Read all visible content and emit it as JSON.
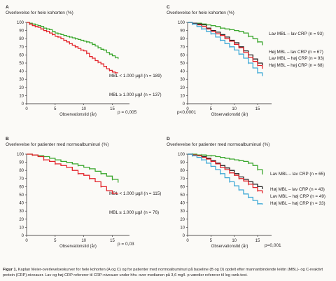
{
  "caption": {
    "label": "Figur 1.",
    "text": "Kaplan Meier-overlevelseskurver for hele kohorten (A og C) og for patienter med normoalbuminuri på baseline (B og D) opdelt efter mannanbindende lektin (MBL)- og C-reaktivt protein (CRP)-niveauer. Lav og høj CRP refererer til CRP-niveauer under hhv. over medianen på 3,6 mg/l. p-værdier refererer til log rank-test."
  },
  "colors": {
    "green": "#3aa62c",
    "red": "#e3242b",
    "black": "#231f20",
    "blue": "#3fa9d6"
  },
  "chart_data": [
    {
      "panel": "A",
      "type": "line",
      "title": "Overlevelse for hele kohorten (%)",
      "xlabel": "Observationstid (år)",
      "ylabel": "",
      "xlim": [
        0,
        18
      ],
      "ylim": [
        0,
        100
      ],
      "xticks": [
        0,
        5,
        10,
        15
      ],
      "yticks": [
        0,
        10,
        20,
        30,
        40,
        50,
        60,
        70,
        80,
        90,
        100
      ],
      "pvalue": "p = 0,005",
      "series": [
        {
          "name": "MBL < 1.000 µg/l (n = 189)",
          "color": "green",
          "x": [
            0,
            0.5,
            1,
            1.5,
            2,
            2.5,
            3,
            3.5,
            4,
            4.5,
            5,
            5.5,
            6,
            6.5,
            7,
            7.5,
            8,
            8.5,
            9,
            9.5,
            10,
            10.5,
            11,
            11.5,
            12,
            12.5,
            13,
            13.5,
            14,
            14.5,
            15,
            15.5,
            16
          ],
          "y": [
            100,
            99,
            98,
            97,
            96,
            95,
            93,
            92,
            91,
            89,
            87,
            86,
            85,
            84,
            83,
            82,
            81,
            80,
            79,
            78,
            77,
            76,
            75,
            73,
            71,
            69,
            67,
            66,
            63,
            61,
            59,
            57,
            55
          ]
        },
        {
          "name": "MBL ≥ 1.000 µg/l (n = 137)",
          "color": "red",
          "x": [
            0,
            0.5,
            1,
            1.5,
            2,
            2.5,
            3,
            3.5,
            4,
            4.5,
            5,
            5.5,
            6,
            6.5,
            7,
            7.5,
            8,
            8.5,
            9,
            9.5,
            10,
            10.5,
            11,
            11.5,
            12,
            12.5,
            13,
            13.5,
            14,
            14.5,
            15,
            15.5,
            16
          ],
          "y": [
            100,
            98,
            96,
            95,
            94,
            92,
            90,
            89,
            87,
            85,
            83,
            82,
            80,
            78,
            76,
            74,
            72,
            70,
            68,
            66,
            65,
            62,
            58,
            56,
            53,
            51,
            49,
            46,
            43,
            41,
            39,
            38,
            38
          ]
        }
      ]
    },
    {
      "panel": "B",
      "type": "line",
      "title": "Overlevelse for patienter med normoalbuminuri (%)",
      "xlabel": "Observationstid (år)",
      "ylabel": "",
      "xlim": [
        0,
        18
      ],
      "ylim": [
        0,
        100
      ],
      "xticks": [
        0,
        5,
        10,
        15
      ],
      "yticks": [
        0,
        10,
        20,
        30,
        40,
        50,
        60,
        70,
        80,
        90,
        100
      ],
      "pvalue": "p = 0,03",
      "series": [
        {
          "name": "MBL < 1.000 µg/l (n = 115)",
          "color": "green",
          "x": [
            0,
            1,
            2,
            3,
            4,
            5,
            6,
            7,
            8,
            9,
            10,
            11,
            12,
            13,
            14,
            15,
            16
          ],
          "y": [
            100,
            99,
            98,
            97,
            95,
            93,
            91,
            90,
            88,
            86,
            84,
            82,
            79,
            76,
            73,
            69,
            65
          ]
        },
        {
          "name": "MBL ≥ 1.000 µg/l (n = 76)",
          "color": "red",
          "x": [
            0,
            1,
            2,
            3,
            4,
            5,
            6,
            7,
            8,
            9,
            10,
            11,
            12,
            13,
            14,
            15,
            16
          ],
          "y": [
            100,
            99,
            97,
            93,
            91,
            88,
            86,
            84,
            80,
            76,
            74,
            70,
            66,
            60,
            55,
            52,
            52
          ]
        }
      ]
    },
    {
      "panel": "C",
      "type": "line",
      "title": "Overlevelse for hele kohorten (%)",
      "xlabel": "Observationstid (år)",
      "ylabel": "",
      "xlim": [
        0,
        18
      ],
      "ylim": [
        0,
        100
      ],
      "xticks": [
        0,
        5,
        10,
        15
      ],
      "yticks": [
        0,
        10,
        20,
        30,
        40,
        50,
        60,
        70,
        80,
        90,
        100
      ],
      "pvalue": "p<0,0001",
      "series": [
        {
          "name": "Lav MBL – lav CRP (n = 93)",
          "color": "green",
          "x": [
            0,
            1,
            2,
            3,
            4,
            5,
            6,
            7,
            8,
            9,
            10,
            11,
            12,
            13,
            14,
            15,
            16
          ],
          "y": [
            100,
            99,
            99,
            98,
            97,
            96,
            95,
            93,
            92,
            91,
            90,
            89,
            87,
            83,
            80,
            76,
            72
          ]
        },
        {
          "name": "Høj MBL – lav CRP (n = 67)",
          "color": "black",
          "x": [
            0,
            1,
            2,
            3,
            4,
            5,
            6,
            7,
            8,
            9,
            10,
            11,
            12,
            13,
            14,
            15,
            16
          ],
          "y": [
            100,
            99,
            98,
            97,
            93,
            90,
            88,
            85,
            82,
            78,
            75,
            70,
            65,
            60,
            55,
            50,
            47
          ]
        },
        {
          "name": "Lav MBL – høj CRP (n = 93)",
          "color": "red",
          "x": [
            0,
            1,
            2,
            3,
            4,
            5,
            6,
            7,
            8,
            9,
            10,
            11,
            12,
            13,
            14,
            15,
            16
          ],
          "y": [
            100,
            98,
            97,
            95,
            92,
            89,
            86,
            84,
            80,
            77,
            73,
            69,
            63,
            57,
            52,
            47,
            43
          ]
        },
        {
          "name": "Høj MBL – høj CRP (n = 68)",
          "color": "blue",
          "x": [
            0,
            1,
            2,
            3,
            4,
            5,
            6,
            7,
            8,
            9,
            10,
            11,
            12,
            13,
            14,
            15,
            16
          ],
          "y": [
            100,
            98,
            95,
            92,
            89,
            86,
            82,
            78,
            74,
            70,
            66,
            61,
            56,
            50,
            44,
            38,
            34
          ]
        }
      ]
    },
    {
      "panel": "D",
      "type": "line",
      "title": "Overlevelse for patienter med normoalbuminuri (%)",
      "xlabel": "Observationstid (år)",
      "ylabel": "",
      "xlim": [
        0,
        18
      ],
      "ylim": [
        0,
        100
      ],
      "xticks": [
        0,
        5,
        10,
        15
      ],
      "yticks": [
        0,
        10,
        20,
        30,
        40,
        50,
        60,
        70,
        80,
        90,
        100
      ],
      "pvalue": "p=0,001",
      "series": [
        {
          "name": "Lav MBL – lav CRP (n = 65)",
          "color": "green",
          "x": [
            0,
            1,
            2,
            3,
            4,
            5,
            6,
            7,
            8,
            9,
            10,
            11,
            12,
            13,
            14,
            15,
            16
          ],
          "y": [
            100,
            100,
            99,
            99,
            98,
            98,
            97,
            96,
            95,
            94,
            93,
            92,
            91,
            89,
            86,
            81,
            75
          ]
        },
        {
          "name": "Høj MBL – lav CRP (n = 43)",
          "color": "black",
          "x": [
            0,
            1,
            2,
            3,
            4,
            5,
            6,
            7,
            8,
            9,
            10,
            11,
            12,
            13,
            14,
            15,
            16
          ],
          "y": [
            100,
            99,
            98,
            97,
            95,
            92,
            89,
            86,
            83,
            80,
            76,
            72,
            69,
            66,
            63,
            60,
            57
          ]
        },
        {
          "name": "Lav MBL – høj CRP (n = 49)",
          "color": "red",
          "x": [
            0,
            1,
            2,
            3,
            4,
            5,
            6,
            7,
            8,
            9,
            10,
            11,
            12,
            13,
            14,
            15,
            16
          ],
          "y": [
            100,
            99,
            98,
            96,
            94,
            91,
            88,
            84,
            81,
            77,
            74,
            70,
            67,
            63,
            59,
            55,
            52
          ]
        },
        {
          "name": "Høj MBL – høj CRP (n = 33)",
          "color": "blue",
          "x": [
            0,
            1,
            2,
            3,
            4,
            5,
            6,
            7,
            8,
            9,
            10,
            11,
            12,
            13,
            14,
            15,
            16
          ],
          "y": [
            100,
            98,
            96,
            93,
            89,
            85,
            81,
            76,
            71,
            66,
            61,
            56,
            51,
            47,
            43,
            39,
            38
          ]
        }
      ]
    }
  ]
}
